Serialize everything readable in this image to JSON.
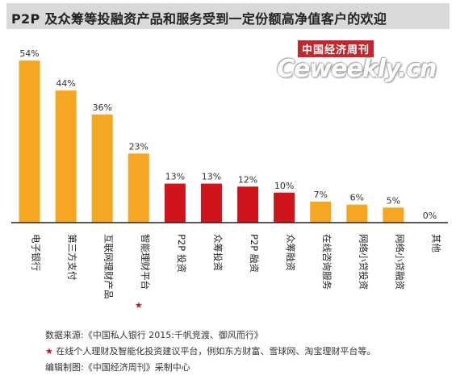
{
  "title": "P2P 及众筹等投融资产品和服务受到一定份额高净值客户的欢迎",
  "logo": {
    "top_text": "中国经济周刊",
    "main_text": "Ceweekly.cn"
  },
  "colors": {
    "orange": "#f5a623",
    "red": "#d0141b",
    "title_bg": "#d9d9d9"
  },
  "chart_data": {
    "type": "bar",
    "title": "P2P 及众筹等投融资产品和服务受到一定份额高净值客户的欢迎",
    "categories": [
      "电子银行",
      "第三方支付",
      "互联网理财产品",
      "智能理财平台★",
      "P2P投资",
      "众筹投资",
      "P2P融资",
      "众筹融资",
      "在线咨询服务",
      "网络小贷投资",
      "网络小贷融资",
      "其他"
    ],
    "category_labels": [
      "电子银行",
      "第三方支付",
      "互联网理财产品",
      "智能理财平台",
      "P2P 投资",
      "众筹投资",
      "P2P 融资",
      "众筹融资",
      "在线咨询服务",
      "网络小贷投资",
      "网络小贷融资",
      "其他"
    ],
    "starred": [
      false,
      false,
      false,
      true,
      false,
      false,
      false,
      false,
      false,
      false,
      false,
      false
    ],
    "values": [
      54,
      44,
      36,
      23,
      13,
      13,
      12,
      10,
      7,
      6,
      5,
      0
    ],
    "value_labels": [
      "54%",
      "44%",
      "36%",
      "23%",
      "13%",
      "13%",
      "12%",
      "10%",
      "7%",
      "6%",
      "5%",
      "0%"
    ],
    "bar_colors": [
      "#f5a623",
      "#f5a623",
      "#f5a623",
      "#f5a623",
      "#d0141b",
      "#d0141b",
      "#d0141b",
      "#d0141b",
      "#f5a623",
      "#f5a623",
      "#f5a623",
      "#f5a623"
    ],
    "ylim": [
      0,
      54
    ],
    "grid": false,
    "legend": "none"
  },
  "footnotes": {
    "source": "数据来源:《中国私人银行 2015:千帆竞渡、御风而行》",
    "star_symbol": "★",
    "star_note": " 在线个人理财及智能化投资建议平台，例如东方财富、雪球网、淘宝理财平台等。",
    "editor": "编辑制图:《中国经济周刊》采制中心"
  }
}
